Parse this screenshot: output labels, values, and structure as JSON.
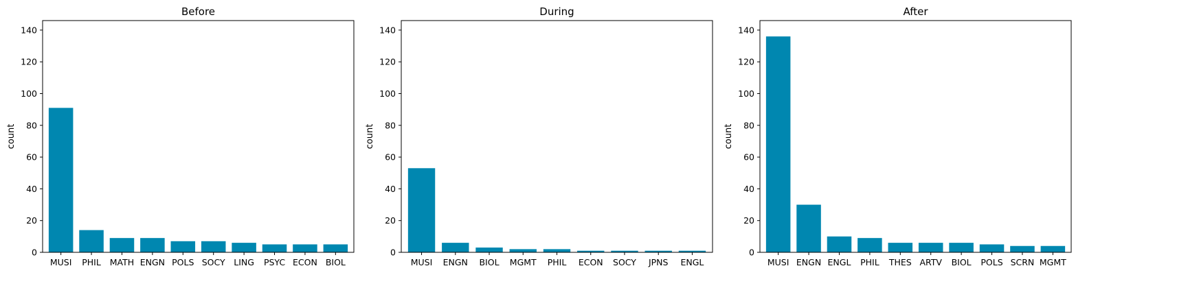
{
  "style": {
    "bar_color": "#0087b0",
    "axis_color": "#000000"
  },
  "chart_data": [
    {
      "type": "bar",
      "title": "Before",
      "xlabel": "",
      "ylabel": "count",
      "ylim": [
        0,
        146
      ],
      "yticks": [
        0,
        20,
        40,
        60,
        80,
        100,
        120,
        140
      ],
      "categories": [
        "MUSI",
        "PHIL",
        "MATH",
        "ENGN",
        "POLS",
        "SOCY",
        "LING",
        "PSYC",
        "ECON",
        "BIOL"
      ],
      "values": [
        91,
        14,
        9,
        9,
        7,
        7,
        6,
        5,
        5,
        5
      ]
    },
    {
      "type": "bar",
      "title": "During",
      "xlabel": "",
      "ylabel": "count",
      "ylim": [
        0,
        146
      ],
      "yticks": [
        0,
        20,
        40,
        60,
        80,
        100,
        120,
        140
      ],
      "categories": [
        "MUSI",
        "ENGN",
        "BIOL",
        "MGMT",
        "PHIL",
        "ECON",
        "SOCY",
        "JPNS",
        "ENGL"
      ],
      "values": [
        53,
        6,
        3,
        2,
        2,
        1,
        1,
        1,
        1
      ]
    },
    {
      "type": "bar",
      "title": "After",
      "xlabel": "",
      "ylabel": "count",
      "ylim": [
        0,
        146
      ],
      "yticks": [
        0,
        20,
        40,
        60,
        80,
        100,
        120,
        140
      ],
      "categories": [
        "MUSI",
        "ENGN",
        "ENGL",
        "PHIL",
        "THES",
        "ARTV",
        "BIOL",
        "POLS",
        "SCRN",
        "MGMT"
      ],
      "values": [
        136,
        30,
        10,
        9,
        6,
        6,
        6,
        5,
        4,
        4
      ]
    }
  ]
}
